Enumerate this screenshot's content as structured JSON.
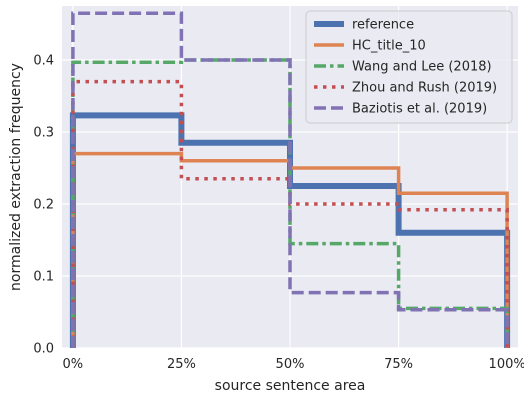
{
  "chart_data": {
    "type": "line",
    "step": "post",
    "title": "",
    "xlabel": "source sentence area",
    "ylabel": "normalized extraction frequency",
    "x_edges": [
      0,
      25,
      50,
      75,
      100
    ],
    "xticks": [
      0,
      25,
      50,
      75,
      100
    ],
    "xtick_labels": [
      "0%",
      "25%",
      "50%",
      "75%",
      "100%"
    ],
    "xlim": [
      -2.5,
      102.5
    ],
    "ylim": [
      0,
      0.475
    ],
    "yticks": [
      0.0,
      0.1,
      0.2,
      0.3,
      0.4
    ],
    "ytick_labels": [
      "0.0",
      "0.1",
      "0.2",
      "0.3",
      "0.4"
    ],
    "grid": true,
    "legend_position": "top-right",
    "series": [
      {
        "name": "reference",
        "values": [
          0.323,
          0.285,
          0.225,
          0.16
        ],
        "color": "#4c72b0",
        "dash": "solid",
        "width": 6
      },
      {
        "name": "HC_title_10",
        "values": [
          0.27,
          0.26,
          0.25,
          0.215
        ],
        "color": "#dd8452",
        "dash": "solid",
        "width": 3.5
      },
      {
        "name": "Wang and Lee (2018)",
        "values": [
          0.397,
          0.4,
          0.145,
          0.055
        ],
        "color": "#55a868",
        "dash": "dashdot",
        "width": 3.5
      },
      {
        "name": "Zhou and Rush (2019)",
        "values": [
          0.37,
          0.235,
          0.2,
          0.192
        ],
        "color": "#c44e52",
        "dash": "dotted",
        "width": 3.5
      },
      {
        "name": "Baziotis et al. (2019)",
        "values": [
          0.465,
          0.4,
          0.077,
          0.053
        ],
        "color": "#8172b3",
        "dash": "dashed",
        "width": 3.5
      }
    ]
  }
}
